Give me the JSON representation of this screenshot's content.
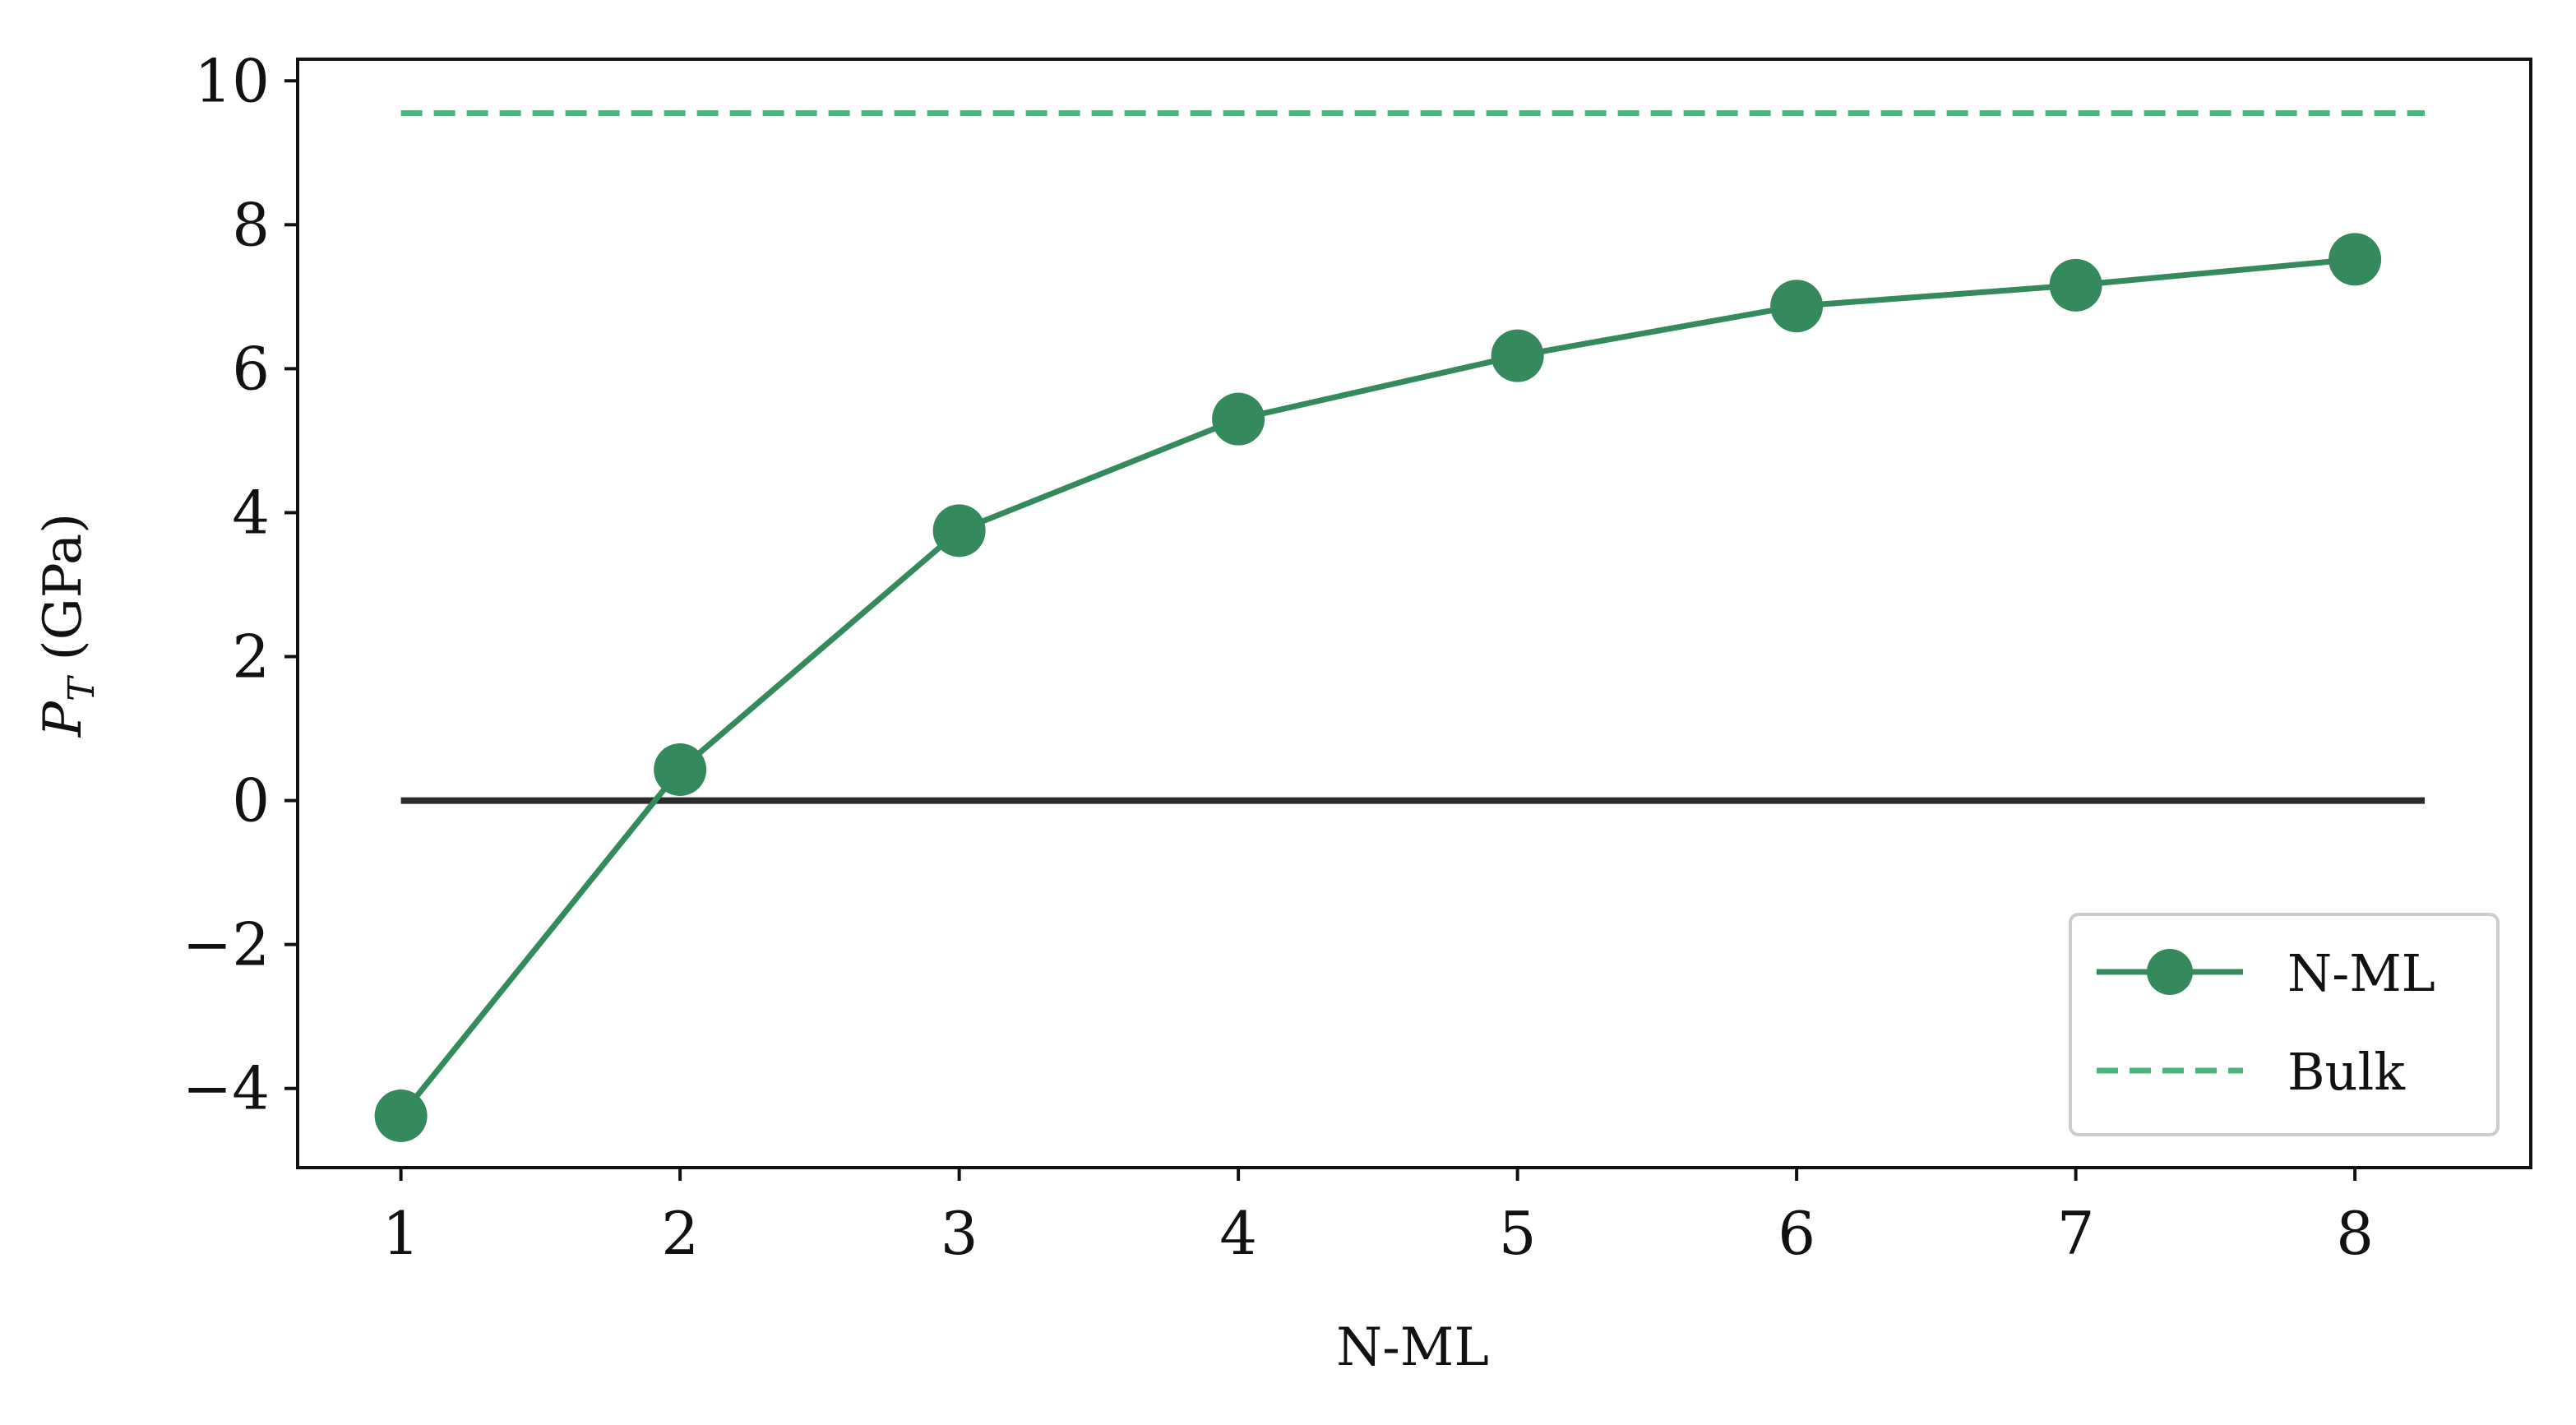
{
  "chart_data": {
    "type": "line",
    "xlabel": "N-ML",
    "ylabel": {
      "symbol": "P",
      "subscript": "T",
      "unit": " (GPa)"
    },
    "x": [
      1,
      2,
      3,
      4,
      5,
      6,
      7,
      8
    ],
    "xlim": [
      0.63,
      8.63
    ],
    "ylim": [
      -5.1,
      10.3
    ],
    "x_ticks": [
      1,
      2,
      3,
      4,
      5,
      6,
      7,
      8
    ],
    "x_tick_labels": [
      "1",
      "2",
      "3",
      "4",
      "5",
      "6",
      "7",
      "8"
    ],
    "y_ticks": [
      -4,
      -2,
      0,
      2,
      4,
      6,
      8,
      10
    ],
    "y_tick_labels": [
      "−4",
      "−2",
      "0",
      "2",
      "4",
      "6",
      "8",
      "10"
    ],
    "grid": false,
    "legend_position": "bottom-right",
    "series": [
      {
        "name": "N-ML",
        "style": "line-with-markers",
        "color": "#358A5D",
        "values": [
          -4.38,
          0.43,
          3.75,
          5.3,
          6.18,
          6.87,
          7.16,
          7.52
        ]
      },
      {
        "name": "Bulk",
        "style": "dashed",
        "color": "#4DB37F",
        "x_range": [
          1,
          8.25
        ],
        "value": 9.55
      }
    ],
    "reference_line": {
      "style": "solid",
      "color": "#2a2a2a",
      "x_range": [
        1,
        8.25
      ],
      "value": 0
    }
  }
}
